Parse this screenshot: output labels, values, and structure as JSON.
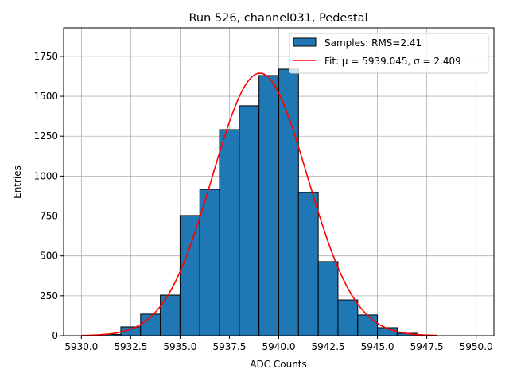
{
  "chart_data": {
    "type": "bar",
    "title": "Run 526, channel031, Pedestal",
    "xlabel": "ADC Counts",
    "ylabel": "Entries",
    "xlim": [
      5929.1,
      5950.9
    ],
    "ylim": [
      0,
      1929
    ],
    "grid": true,
    "legend_placement": "top-right",
    "xticks": [
      5930.0,
      5932.5,
      5935.0,
      5937.5,
      5940.0,
      5942.5,
      5945.0,
      5947.5,
      5950.0
    ],
    "xtick_labels": [
      "5930.0",
      "5932.5",
      "5935.0",
      "5937.5",
      "5940.0",
      "5942.5",
      "5945.0",
      "5947.5",
      "5950.0"
    ],
    "yticks": [
      0,
      250,
      500,
      750,
      1000,
      1250,
      1500,
      1750
    ],
    "ytick_labels": [
      "0",
      "250",
      "500",
      "750",
      "1000",
      "1250",
      "1500",
      "1750"
    ],
    "bin_edges": [
      5931,
      5932,
      5933,
      5934,
      5935,
      5936,
      5937,
      5938,
      5939,
      5940,
      5941,
      5942,
      5943,
      5944,
      5945,
      5946,
      5947,
      5948
    ],
    "series": [
      {
        "name": "Samples: RMS=2.41",
        "kind": "histogram",
        "color": "#1f77b4",
        "values": [
          8,
          55,
          135,
          254,
          753,
          917,
          1291,
          1441,
          1630,
          1670,
          897,
          464,
          224,
          130,
          50,
          15,
          3
        ]
      },
      {
        "name": "Fit: μ = 5939.045, σ = 2.409",
        "kind": "line",
        "color": "#ff0000",
        "mu": 5939.045,
        "sigma": 2.409,
        "amplitude": 1645,
        "x_range": [
          5930,
          5948
        ]
      }
    ]
  }
}
